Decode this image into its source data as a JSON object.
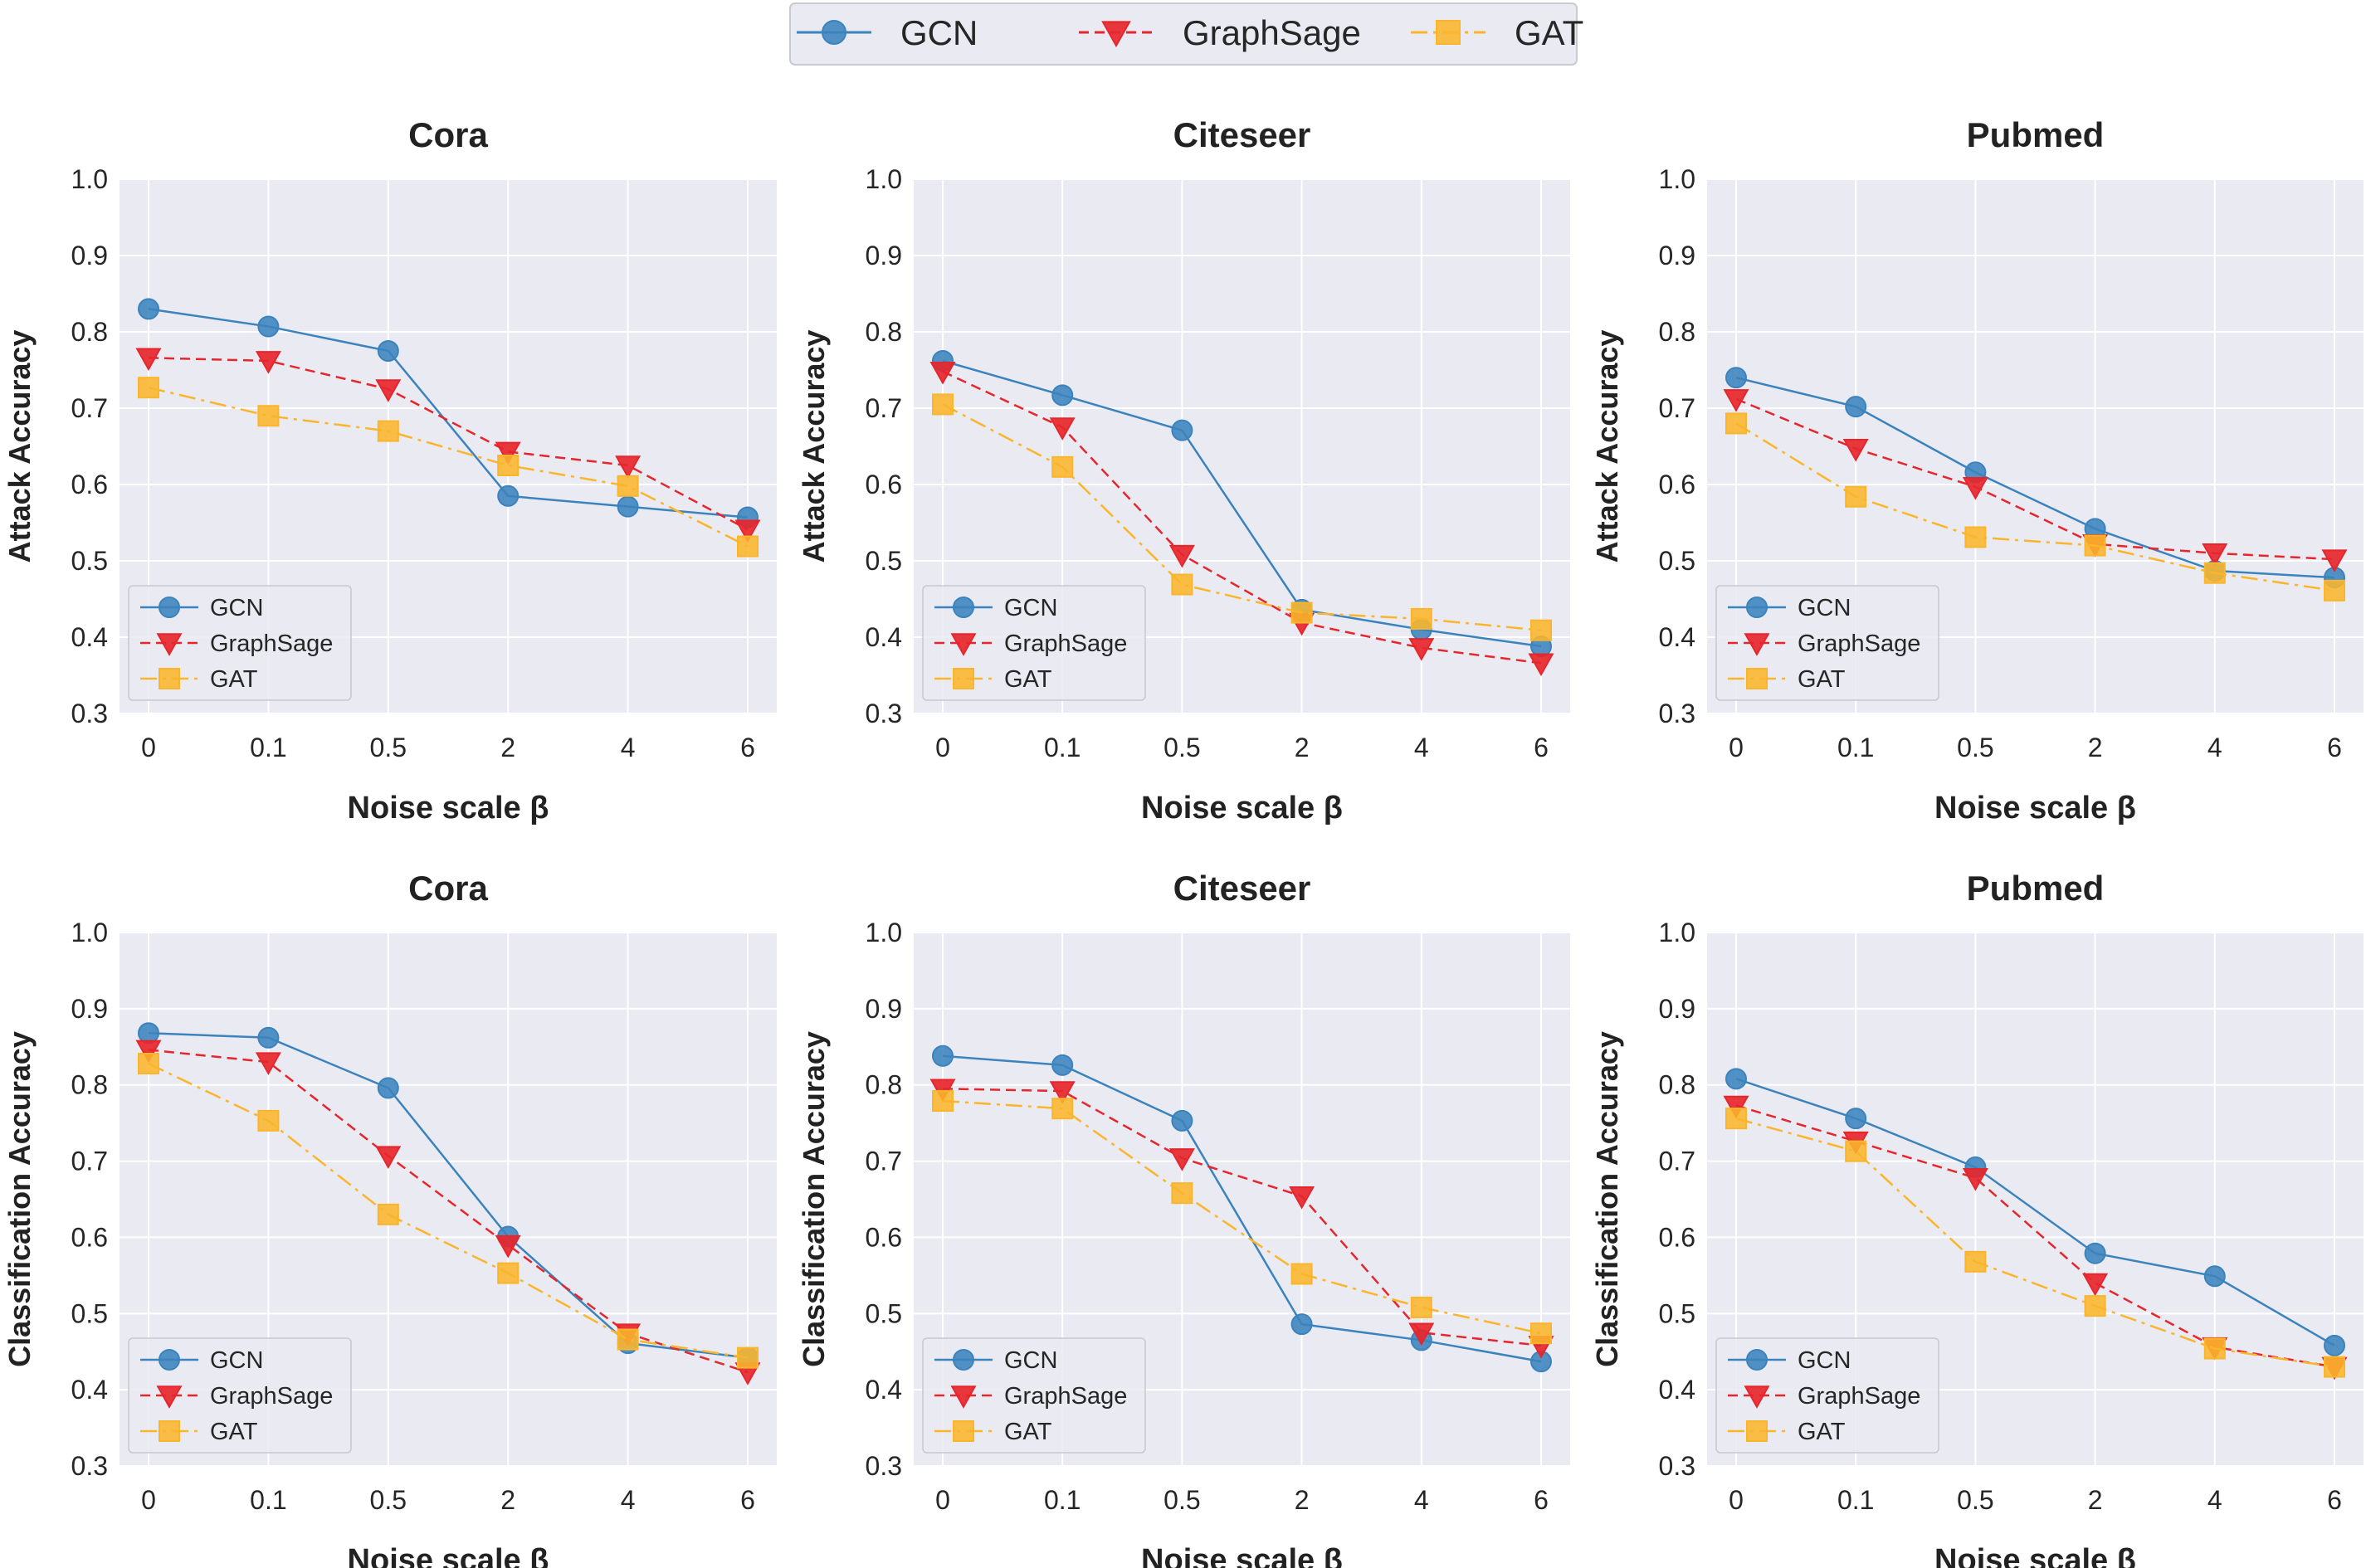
{
  "legend_top": [
    "GCN",
    "GraphSage",
    "GAT"
  ],
  "colors": {
    "GCN": "#3b83bd",
    "GraphSage": "#e6262d",
    "GAT": "#fbb52b",
    "panel_bg": "#eaeaf2",
    "grid": "#ffffff"
  },
  "chart_data": [
    {
      "type": "line",
      "title": "Cora",
      "xlabel": "Noise scale β",
      "ylabel": "Attack Accuracy",
      "categories": [
        "0",
        "0.1",
        "0.5",
        "2",
        "4",
        "6"
      ],
      "ylim": [
        0.3,
        1.0
      ],
      "yticks": [
        "0.3",
        "0.4",
        "0.5",
        "0.6",
        "0.7",
        "0.8",
        "0.9",
        "1.0"
      ],
      "legend": [
        "GCN",
        "GraphSage",
        "GAT"
      ],
      "legend_loc": "lower-left",
      "series": [
        {
          "name": "GCN",
          "values": [
            0.83,
            0.807,
            0.775,
            0.585,
            0.571,
            0.557
          ]
        },
        {
          "name": "GraphSage",
          "values": [
            0.766,
            0.762,
            0.725,
            0.643,
            0.625,
            0.541
          ]
        },
        {
          "name": "GAT",
          "values": [
            0.727,
            0.69,
            0.67,
            0.625,
            0.598,
            0.519
          ]
        }
      ]
    },
    {
      "type": "line",
      "title": "Citeseer",
      "xlabel": "Noise scale β",
      "ylabel": "Attack Accuracy",
      "categories": [
        "0",
        "0.1",
        "0.5",
        "2",
        "4",
        "6"
      ],
      "ylim": [
        0.3,
        1.0
      ],
      "yticks": [
        "0.3",
        "0.4",
        "0.5",
        "0.6",
        "0.7",
        "0.8",
        "0.9",
        "1.0"
      ],
      "legend": [
        "GCN",
        "GraphSage",
        "GAT"
      ],
      "legend_loc": "lower-left",
      "series": [
        {
          "name": "GCN",
          "values": [
            0.762,
            0.717,
            0.671,
            0.436,
            0.41,
            0.388
          ]
        },
        {
          "name": "GraphSage",
          "values": [
            0.748,
            0.675,
            0.508,
            0.419,
            0.386,
            0.366
          ]
        },
        {
          "name": "GAT",
          "values": [
            0.705,
            0.623,
            0.469,
            0.432,
            0.424,
            0.409
          ]
        }
      ]
    },
    {
      "type": "line",
      "title": "Pubmed",
      "xlabel": "Noise scale β",
      "ylabel": "Attack Accuracy",
      "categories": [
        "0",
        "0.1",
        "0.5",
        "2",
        "4",
        "6"
      ],
      "ylim": [
        0.3,
        1.0
      ],
      "yticks": [
        "0.3",
        "0.4",
        "0.5",
        "0.6",
        "0.7",
        "0.8",
        "0.9",
        "1.0"
      ],
      "legend": [
        "GCN",
        "GraphSage",
        "GAT"
      ],
      "legend_loc": "lower-left",
      "series": [
        {
          "name": "GCN",
          "values": [
            0.74,
            0.702,
            0.616,
            0.542,
            0.487,
            0.478
          ]
        },
        {
          "name": "GraphSage",
          "values": [
            0.712,
            0.647,
            0.597,
            0.522,
            0.51,
            0.502
          ]
        },
        {
          "name": "GAT",
          "values": [
            0.68,
            0.584,
            0.531,
            0.52,
            0.484,
            0.461
          ]
        }
      ]
    },
    {
      "type": "line",
      "title": "Cora",
      "xlabel": "Noise scale β",
      "ylabel": "Classification Accuracy",
      "categories": [
        "0",
        "0.1",
        "0.5",
        "2",
        "4",
        "6"
      ],
      "ylim": [
        0.3,
        1.0
      ],
      "yticks": [
        "0.3",
        "0.4",
        "0.5",
        "0.6",
        "0.7",
        "0.8",
        "0.9",
        "1.0"
      ],
      "legend": [
        "GCN",
        "GraphSage",
        "GAT"
      ],
      "legend_loc": "lower-left",
      "series": [
        {
          "name": "GCN",
          "values": [
            0.868,
            0.862,
            0.796,
            0.601,
            0.461,
            0.442
          ]
        },
        {
          "name": "GraphSage",
          "values": [
            0.846,
            0.83,
            0.707,
            0.59,
            0.474,
            0.423
          ]
        },
        {
          "name": "GAT",
          "values": [
            0.828,
            0.753,
            0.63,
            0.553,
            0.466,
            0.442
          ]
        }
      ]
    },
    {
      "type": "line",
      "title": "Citeseer",
      "xlabel": "Noise scale β",
      "ylabel": "Classification Accuracy",
      "categories": [
        "0",
        "0.1",
        "0.5",
        "2",
        "4",
        "6"
      ],
      "ylim": [
        0.3,
        1.0
      ],
      "yticks": [
        "0.3",
        "0.4",
        "0.5",
        "0.6",
        "0.7",
        "0.8",
        "0.9",
        "1.0"
      ],
      "legend": [
        "GCN",
        "GraphSage",
        "GAT"
      ],
      "legend_loc": "lower-left",
      "series": [
        {
          "name": "GCN",
          "values": [
            0.838,
            0.826,
            0.753,
            0.486,
            0.465,
            0.437
          ]
        },
        {
          "name": "GraphSage",
          "values": [
            0.795,
            0.792,
            0.704,
            0.654,
            0.475,
            0.458
          ]
        },
        {
          "name": "GAT",
          "values": [
            0.779,
            0.769,
            0.658,
            0.552,
            0.508,
            0.474
          ]
        }
      ]
    },
    {
      "type": "line",
      "title": "Pubmed",
      "xlabel": "Noise scale β",
      "ylabel": "Classification Accuracy",
      "categories": [
        "0",
        "0.1",
        "0.5",
        "2",
        "4",
        "6"
      ],
      "ylim": [
        0.3,
        1.0
      ],
      "yticks": [
        "0.3",
        "0.4",
        "0.5",
        "0.6",
        "0.7",
        "0.8",
        "0.9",
        "1.0"
      ],
      "legend": [
        "GCN",
        "GraphSage",
        "GAT"
      ],
      "legend_loc": "lower-left",
      "series": [
        {
          "name": "GCN",
          "values": [
            0.808,
            0.756,
            0.692,
            0.579,
            0.549,
            0.458
          ]
        },
        {
          "name": "GraphSage",
          "values": [
            0.773,
            0.726,
            0.678,
            0.54,
            0.456,
            0.43
          ]
        },
        {
          "name": "GAT",
          "values": [
            0.756,
            0.713,
            0.568,
            0.51,
            0.454,
            0.43
          ]
        }
      ]
    }
  ]
}
